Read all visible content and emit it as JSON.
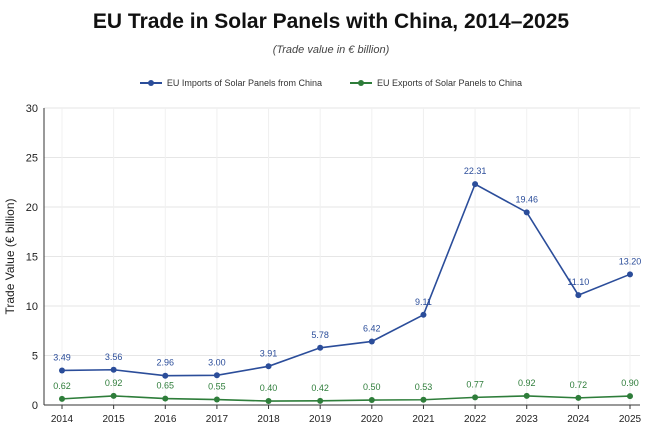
{
  "chart_data": {
    "type": "line",
    "title": "EU Trade in Solar Panels with China, 2014–2025",
    "subtitle": "(Trade value in € billion)",
    "xlabel": "",
    "ylabel": "Trade Value (€ billion)",
    "ylim": [
      0,
      30
    ],
    "yticks": [
      "0",
      "5",
      "10",
      "15",
      "20",
      "25",
      "30"
    ],
    "grid": true,
    "legend_position": "top-center",
    "categories": [
      "2014",
      "2015",
      "2016",
      "2017",
      "2018",
      "2019",
      "2020",
      "2021",
      "2022",
      "2023",
      "2024",
      "2025"
    ],
    "series": [
      {
        "name": "EU Imports of Solar Panels from China",
        "color": "#2b4d9a",
        "values": [
          3.49,
          3.56,
          2.96,
          3.0,
          3.91,
          5.78,
          6.42,
          9.11,
          22.31,
          19.46,
          11.1,
          13.2
        ],
        "labels": [
          "3.49",
          "3.56",
          "2.96",
          "3.00",
          "3.91",
          "5.78",
          "6.42",
          "9.11",
          "22.31",
          "19.46",
          "11.10",
          "13.20"
        ]
      },
      {
        "name": "EU Exports of Solar Panels to China",
        "color": "#2e7d3a",
        "values": [
          0.62,
          0.92,
          0.65,
          0.55,
          0.4,
          0.42,
          0.5,
          0.53,
          0.77,
          0.92,
          0.72,
          0.9
        ],
        "labels": [
          "0.62",
          "0.92",
          "0.65",
          "0.55",
          "0.40",
          "0.42",
          "0.50",
          "0.53",
          "0.77",
          "0.92",
          "0.72",
          "0.90"
        ]
      }
    ]
  }
}
